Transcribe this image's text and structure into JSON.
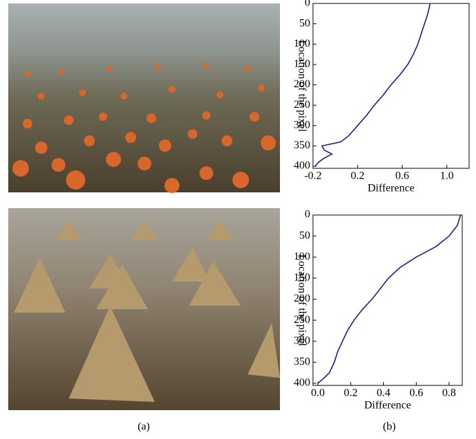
{
  "captions": [
    "(a)",
    "(b)"
  ],
  "chart_data": [
    {
      "type": "line",
      "x_label": "Difference",
      "y_label": "Location of the pixel",
      "xlim": [
        -0.2,
        1.2
      ],
      "xticks": [
        -0.2,
        0.2,
        0.6,
        {
          "value": 1,
          "label": "1.0"
        }
      ],
      "ylim": [
        0,
        405
      ],
      "yticks": [
        0,
        50,
        100,
        150,
        200,
        250,
        300,
        350,
        400
      ],
      "y_inverted": true,
      "series": [
        {
          "color": "#1c1c8a",
          "locations": [
            0,
            25,
            50,
            75,
            100,
            125,
            150,
            175,
            200,
            225,
            250,
            275,
            300,
            325,
            340,
            350,
            360,
            370,
            380,
            390,
            400
          ],
          "values": [
            0.85,
            0.83,
            0.8,
            0.77,
            0.74,
            0.7,
            0.65,
            0.58,
            0.5,
            0.43,
            0.35,
            0.28,
            0.2,
            0.12,
            0.05,
            -0.12,
            -0.1,
            -0.03,
            -0.1,
            -0.15,
            -0.18
          ]
        }
      ]
    },
    {
      "type": "line",
      "x_label": "Difference",
      "y_label": "Location of the pixel",
      "xlim": [
        -0.03,
        0.88
      ],
      "xticks": [
        {
          "value": 0,
          "label": "0.0"
        },
        0.2,
        0.4,
        0.6,
        0.8
      ],
      "ylim": [
        0,
        405
      ],
      "yticks": [
        0,
        50,
        100,
        150,
        200,
        250,
        300,
        350,
        400
      ],
      "y_inverted": true,
      "series": [
        {
          "color": "#1c1c8a",
          "locations": [
            0,
            25,
            50,
            75,
            100,
            125,
            150,
            175,
            200,
            225,
            250,
            275,
            300,
            325,
            350,
            375,
            390,
            400
          ],
          "values": [
            0.87,
            0.85,
            0.8,
            0.72,
            0.6,
            0.5,
            0.43,
            0.38,
            0.33,
            0.27,
            0.22,
            0.18,
            0.15,
            0.12,
            0.1,
            0.07,
            0.03,
            0.0
          ]
        }
      ]
    }
  ]
}
